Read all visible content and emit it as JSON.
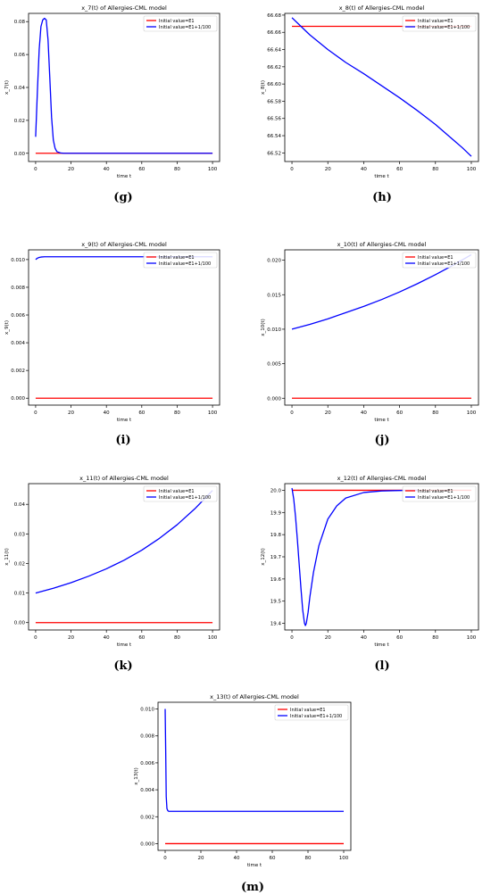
{
  "chart_data": [
    {
      "type": "line",
      "title": "x_7(t) of Allergies-CML model",
      "xlabel": "time t",
      "ylabel": "x_7(t)",
      "caption": "(g)",
      "xlim": [
        -4,
        104
      ],
      "ylim": [
        -0.005,
        0.085
      ],
      "xticks": [
        0,
        20,
        40,
        60,
        80,
        100
      ],
      "yticks": [
        0.0,
        0.02,
        0.04,
        0.06,
        0.08
      ],
      "ytick_labels": [
        "0.00",
        "0.02",
        "0.04",
        "0.06",
        "0.08"
      ],
      "legend_position": "upper-right",
      "series": [
        {
          "name": "Initial value=E1",
          "color": "#ff0000",
          "x": [
            0,
            100
          ],
          "y": [
            0,
            0
          ]
        },
        {
          "name": "Initial value=E1+1/100",
          "color": "#0000ff",
          "x": [
            0,
            1,
            2,
            3,
            4,
            5,
            6,
            7,
            8,
            9,
            10,
            11,
            12,
            14,
            16,
            20,
            40,
            60,
            80,
            100
          ],
          "y": [
            0.01,
            0.038,
            0.063,
            0.077,
            0.081,
            0.082,
            0.081,
            0.069,
            0.046,
            0.022,
            0.008,
            0.003,
            0.001,
            0.0002,
            0,
            0,
            0,
            0,
            0,
            0
          ]
        }
      ]
    },
    {
      "type": "line",
      "title": "x_8(t) of Allergies-CML model",
      "xlabel": "time t",
      "ylabel": "x_8(t)",
      "caption": "(h)",
      "xlim": [
        -4,
        104
      ],
      "ylim": [
        66.51,
        66.682
      ],
      "xticks": [
        0,
        20,
        40,
        60,
        80,
        100
      ],
      "yticks": [
        66.52,
        66.54,
        66.56,
        66.58,
        66.6,
        66.62,
        66.64,
        66.66,
        66.68
      ],
      "ytick_labels": [
        "66.52",
        "66.54",
        "66.56",
        "66.58",
        "66.60",
        "66.62",
        "66.64",
        "66.66",
        "66.68"
      ],
      "legend_position": "upper-right",
      "series": [
        {
          "name": "Initial value=E1",
          "color": "#ff0000",
          "x": [
            0,
            100
          ],
          "y": [
            66.667,
            66.667
          ]
        },
        {
          "name": "Initial value=E1+1/100",
          "color": "#0000ff",
          "x": [
            0,
            5,
            10,
            20,
            30,
            40,
            50,
            60,
            70,
            80,
            90,
            95,
            100
          ],
          "y": [
            66.677,
            66.667,
            66.657,
            66.64,
            66.625,
            66.612,
            66.598,
            66.584,
            66.569,
            66.553,
            66.535,
            66.526,
            66.516
          ]
        }
      ]
    },
    {
      "type": "line",
      "title": "x_9(t) of Allergies-CML model",
      "xlabel": "time t",
      "ylabel": "x_9(t)",
      "caption": "(i)",
      "xlim": [
        -4,
        104
      ],
      "ylim": [
        -0.0005,
        0.0107
      ],
      "xticks": [
        0,
        20,
        40,
        60,
        80,
        100
      ],
      "yticks": [
        0.0,
        0.002,
        0.004,
        0.006,
        0.008,
        0.01
      ],
      "ytick_labels": [
        "0.000",
        "0.002",
        "0.004",
        "0.006",
        "0.008",
        "0.010"
      ],
      "legend_position": "upper-right",
      "series": [
        {
          "name": "Initial value=E1",
          "color": "#ff0000",
          "x": [
            0,
            100
          ],
          "y": [
            0,
            0
          ]
        },
        {
          "name": "Initial value=E1+1/100",
          "color": "#0000ff",
          "x": [
            0,
            1,
            2,
            3,
            5,
            8,
            20,
            40,
            60,
            80,
            100
          ],
          "y": [
            0.01,
            0.0101,
            0.01015,
            0.01018,
            0.0102,
            0.0102,
            0.0102,
            0.0102,
            0.0102,
            0.0102,
            0.0102
          ]
        }
      ]
    },
    {
      "type": "line",
      "title": "x_10(t) of Allergies-CML model",
      "xlabel": "time t",
      "ylabel": "x_10(t)",
      "caption": "(j)",
      "xlim": [
        -4,
        104
      ],
      "ylim": [
        -0.001,
        0.0215
      ],
      "xticks": [
        0,
        20,
        40,
        60,
        80,
        100
      ],
      "yticks": [
        0.0,
        0.005,
        0.01,
        0.015,
        0.02
      ],
      "ytick_labels": [
        "0.000",
        "0.005",
        "0.010",
        "0.015",
        "0.020"
      ],
      "legend_position": "upper-right",
      "series": [
        {
          "name": "Initial value=E1",
          "color": "#ff0000",
          "x": [
            0,
            100
          ],
          "y": [
            0,
            0
          ]
        },
        {
          "name": "Initial value=E1+1/100",
          "color": "#0000ff",
          "x": [
            0,
            10,
            20,
            30,
            40,
            50,
            60,
            70,
            80,
            90,
            100
          ],
          "y": [
            0.01,
            0.0107,
            0.0115,
            0.0124,
            0.0133,
            0.0143,
            0.0154,
            0.0166,
            0.0179,
            0.0193,
            0.0208
          ]
        }
      ]
    },
    {
      "type": "line",
      "title": "x_11(t) of Allergies-CML model",
      "xlabel": "time t",
      "ylabel": "x_11(t)",
      "caption": "(k)",
      "xlim": [
        -4,
        104
      ],
      "ylim": [
        -0.0025,
        0.047
      ],
      "xticks": [
        0,
        20,
        40,
        60,
        80,
        100
      ],
      "yticks": [
        0.0,
        0.01,
        0.02,
        0.03,
        0.04
      ],
      "ytick_labels": [
        "0.00",
        "0.01",
        "0.02",
        "0.03",
        "0.04"
      ],
      "legend_position": "upper-right",
      "series": [
        {
          "name": "Initial value=E1",
          "color": "#ff0000",
          "x": [
            0,
            100
          ],
          "y": [
            0,
            0
          ]
        },
        {
          "name": "Initial value=E1+1/100",
          "color": "#0000ff",
          "x": [
            0,
            10,
            20,
            30,
            40,
            50,
            60,
            70,
            80,
            90,
            100
          ],
          "y": [
            0.01,
            0.0116,
            0.0135,
            0.0157,
            0.0182,
            0.0211,
            0.0245,
            0.0285,
            0.0331,
            0.0385,
            0.0447
          ]
        }
      ]
    },
    {
      "type": "line",
      "title": "x_12(t) of Allergies-CML model",
      "xlabel": "time t",
      "ylabel": "x_12(t)",
      "caption": "(l)",
      "xlim": [
        -4,
        104
      ],
      "ylim": [
        19.37,
        20.03
      ],
      "xticks": [
        0,
        20,
        40,
        60,
        80,
        100
      ],
      "yticks": [
        19.4,
        19.5,
        19.6,
        19.7,
        19.8,
        19.9,
        20.0
      ],
      "ytick_labels": [
        "19.4",
        "19.5",
        "19.6",
        "19.7",
        "19.8",
        "19.9",
        "20.0"
      ],
      "legend_position": "upper-right",
      "series": [
        {
          "name": "Initial value=E1",
          "color": "#ff0000",
          "x": [
            0,
            100
          ],
          "y": [
            20.0,
            20.0
          ]
        },
        {
          "name": "Initial value=E1+1/100",
          "color": "#0000ff",
          "x": [
            0,
            1,
            2,
            3,
            4,
            5,
            6,
            7,
            7.5,
            8,
            9,
            10,
            12,
            15,
            20,
            25,
            30,
            40,
            50,
            60,
            70
          ],
          "y": [
            20.01,
            19.96,
            19.88,
            19.78,
            19.67,
            19.56,
            19.46,
            19.4,
            19.39,
            19.4,
            19.45,
            19.52,
            19.63,
            19.75,
            19.87,
            19.93,
            19.965,
            19.99,
            19.997,
            19.999,
            20.0
          ]
        }
      ]
    },
    {
      "type": "line",
      "title": "x_13(t) of Allergies-CML model",
      "xlabel": "time t",
      "ylabel": "x_13(t)",
      "caption": "(m)",
      "xlim": [
        -4,
        104
      ],
      "ylim": [
        -0.0005,
        0.0105
      ],
      "xticks": [
        0,
        20,
        40,
        60,
        80,
        100
      ],
      "yticks": [
        0.0,
        0.002,
        0.004,
        0.006,
        0.008,
        0.01
      ],
      "ytick_labels": [
        "0.000",
        "0.002",
        "0.004",
        "0.006",
        "0.008",
        "0.010"
      ],
      "legend_position": "upper-right",
      "series": [
        {
          "name": "Initial value=E1",
          "color": "#ff0000",
          "x": [
            0,
            100
          ],
          "y": [
            0,
            0
          ]
        },
        {
          "name": "Initial value=E1+1/100",
          "color": "#0000ff",
          "x": [
            0,
            0.3,
            0.6,
            1,
            1.5,
            2,
            3,
            5,
            10,
            20,
            40,
            60,
            80,
            100
          ],
          "y": [
            0.01,
            0.007,
            0.0035,
            0.0026,
            0.00245,
            0.0024,
            0.0024,
            0.0024,
            0.0024,
            0.0024,
            0.0024,
            0.0024,
            0.0024,
            0.0024
          ]
        }
      ]
    }
  ]
}
